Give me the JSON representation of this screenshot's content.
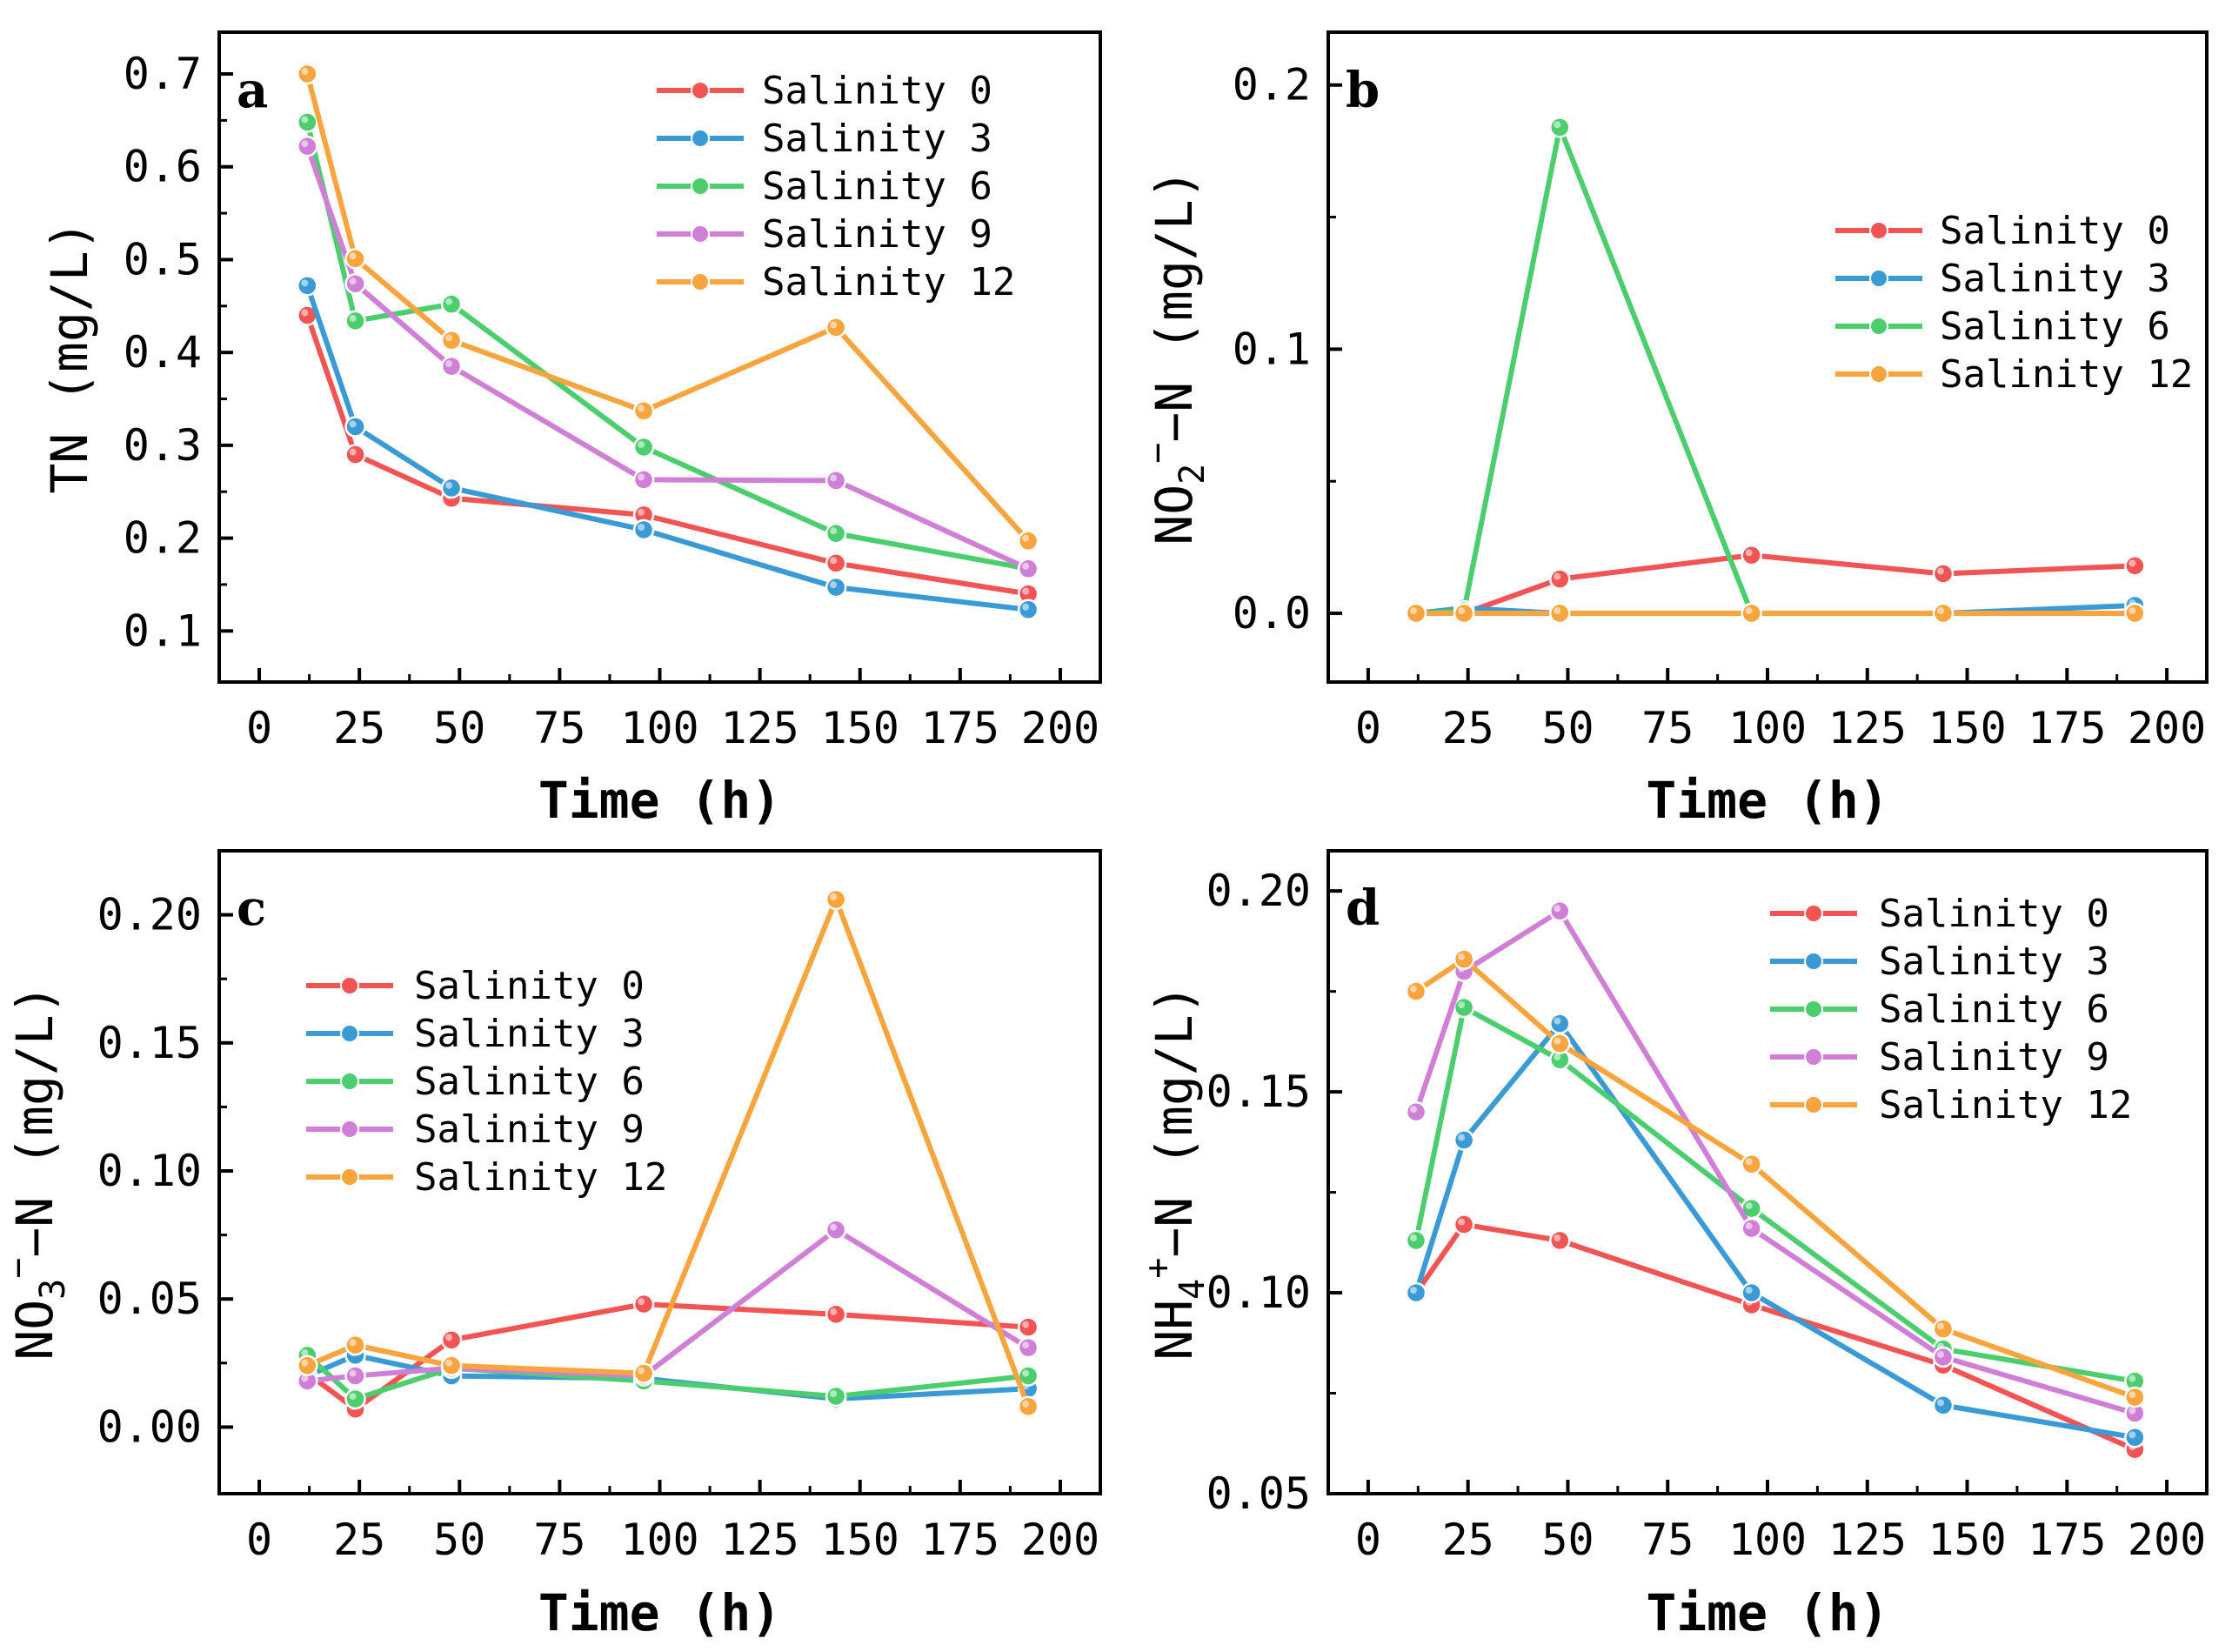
{
  "colors": {
    "Salinity 0": "#f25353",
    "Salinity 3": "#3a9ad6",
    "Salinity 6": "#4ccd6e",
    "Salinity 9": "#cf7fd6",
    "Salinity 12": "#f9a43c"
  },
  "chart_data": [
    {
      "id": "a",
      "type": "line",
      "panel_label": "a",
      "xlabel": "Time (h)",
      "ylabel": "TN (mg/L)",
      "xlim": [
        -10,
        210
      ],
      "ylim": [
        0.045,
        0.745
      ],
      "xticks": [
        0,
        25,
        50,
        75,
        100,
        125,
        150,
        175,
        200
      ],
      "xtick_labels": [
        "0",
        "25",
        "50",
        "75",
        "100",
        "125",
        "150",
        "175",
        "200"
      ],
      "yticks": [
        0.1,
        0.2,
        0.3,
        0.4,
        0.5,
        0.6,
        0.7
      ],
      "ytick_labels": [
        "0.1",
        "0.2",
        "0.3",
        "0.4",
        "0.5",
        "0.6",
        "0.7"
      ],
      "legend_position": "top-right",
      "x": [
        12,
        24,
        48,
        96,
        144,
        192
      ],
      "series": [
        {
          "name": "Salinity 0",
          "values": [
            0.44,
            0.29,
            0.243,
            0.225,
            0.173,
            0.14
          ]
        },
        {
          "name": "Salinity 3",
          "values": [
            0.472,
            0.32,
            0.254,
            0.209,
            0.147,
            0.123
          ]
        },
        {
          "name": "Salinity 6",
          "values": [
            0.648,
            0.434,
            0.452,
            0.298,
            0.205,
            0.167
          ]
        },
        {
          "name": "Salinity 9",
          "values": [
            0.622,
            0.474,
            0.385,
            0.263,
            0.262,
            0.167
          ]
        },
        {
          "name": "Salinity 12",
          "values": [
            0.7,
            0.501,
            0.413,
            0.337,
            0.427,
            0.197
          ]
        }
      ]
    },
    {
      "id": "b",
      "type": "line",
      "panel_label": "b",
      "xlabel": "Time (h)",
      "ylabel_main": "NO",
      "ylabel_sub": "2",
      "ylabel_sup": "−",
      "ylabel_tail": "−N (mg/L)",
      "xlim": [
        -10,
        210
      ],
      "ylim": [
        -0.026,
        0.22
      ],
      "xticks": [
        0,
        25,
        50,
        75,
        100,
        125,
        150,
        175,
        200
      ],
      "xtick_labels": [
        "0",
        "25",
        "50",
        "75",
        "100",
        "125",
        "150",
        "175",
        "200"
      ],
      "yticks": [
        0.0,
        0.1,
        0.2
      ],
      "ytick_labels": [
        "0.0",
        "0.1",
        "0.2"
      ],
      "yminor": [
        0.05,
        0.15
      ],
      "legend_position": "right",
      "x": [
        12,
        24,
        48,
        96,
        144,
        192
      ],
      "series": [
        {
          "name": "Salinity 0",
          "values": [
            0.0,
            0.0,
            0.013,
            0.022,
            0.015,
            0.018
          ]
        },
        {
          "name": "Salinity 3",
          "values": [
            0.0,
            0.002,
            0.0,
            0.0,
            0.0,
            0.003
          ]
        },
        {
          "name": "Salinity 6",
          "values": [
            0.0,
            0.001,
            0.184,
            0.0,
            0.0,
            0.0
          ]
        },
        {
          "name": "Salinity 12",
          "values": [
            0.0,
            0.0,
            0.0,
            0.0,
            0.0,
            0.0
          ]
        }
      ]
    },
    {
      "id": "c",
      "type": "line",
      "panel_label": "c",
      "xlabel": "Time (h)",
      "ylabel_main": "NO",
      "ylabel_sub": "3",
      "ylabel_sup": "−",
      "ylabel_tail": "−N (mg/L)",
      "xlim": [
        -10,
        210
      ],
      "ylim": [
        -0.026,
        0.225
      ],
      "xticks": [
        0,
        25,
        50,
        75,
        100,
        125,
        150,
        175,
        200
      ],
      "xtick_labels": [
        "0",
        "25",
        "50",
        "75",
        "100",
        "125",
        "150",
        "175",
        "200"
      ],
      "yticks": [
        0.0,
        0.05,
        0.1,
        0.15,
        0.2
      ],
      "ytick_labels": [
        "0.00",
        "0.05",
        "0.10",
        "0.15",
        "0.20"
      ],
      "legend_position": "left",
      "x": [
        12,
        24,
        48,
        96,
        144,
        192
      ],
      "series": [
        {
          "name": "Salinity 0",
          "values": [
            0.021,
            0.007,
            0.034,
            0.048,
            0.044,
            0.039
          ]
        },
        {
          "name": "Salinity 3",
          "values": [
            0.02,
            0.028,
            0.02,
            0.019,
            0.011,
            0.015
          ]
        },
        {
          "name": "Salinity 6",
          "values": [
            0.028,
            0.011,
            0.023,
            0.018,
            0.012,
            0.02
          ]
        },
        {
          "name": "Salinity 9",
          "values": [
            0.018,
            0.02,
            0.023,
            0.02,
            0.077,
            0.031
          ]
        },
        {
          "name": "Salinity 12",
          "values": [
            0.024,
            0.032,
            0.024,
            0.021,
            0.206,
            0.008
          ]
        }
      ]
    },
    {
      "id": "d",
      "type": "line",
      "panel_label": "d",
      "xlabel": "Time (h)",
      "ylabel_main": "NH",
      "ylabel_sub": "4",
      "ylabel_sup": "+",
      "ylabel_tail": "−N (mg/L)",
      "xlim": [
        -10,
        210
      ],
      "ylim": [
        0.05,
        0.21
      ],
      "xticks": [
        0,
        25,
        50,
        75,
        100,
        125,
        150,
        175,
        200
      ],
      "xtick_labels": [
        "0",
        "25",
        "50",
        "75",
        "100",
        "125",
        "150",
        "175",
        "200"
      ],
      "yticks": [
        0.05,
        0.1,
        0.15,
        0.2
      ],
      "ytick_labels": [
        "0.05",
        "0.10",
        "0.15",
        "0.20"
      ],
      "yminor": [
        0.075,
        0.125,
        0.175
      ],
      "legend_position": "top-right",
      "x": [
        12,
        24,
        48,
        96,
        144,
        192
      ],
      "series": [
        {
          "name": "Salinity 0",
          "values": [
            0.1,
            0.117,
            0.113,
            0.097,
            0.082,
            0.061
          ]
        },
        {
          "name": "Salinity 3",
          "values": [
            0.1,
            0.138,
            0.167,
            0.1,
            0.072,
            0.064
          ]
        },
        {
          "name": "Salinity 6",
          "values": [
            0.113,
            0.171,
            0.158,
            0.121,
            0.086,
            0.078
          ]
        },
        {
          "name": "Salinity 9",
          "values": [
            0.145,
            0.18,
            0.195,
            0.116,
            0.084,
            0.07
          ]
        },
        {
          "name": "Salinity 12",
          "values": [
            0.175,
            0.183,
            0.162,
            0.132,
            0.091,
            0.074
          ]
        }
      ]
    }
  ]
}
